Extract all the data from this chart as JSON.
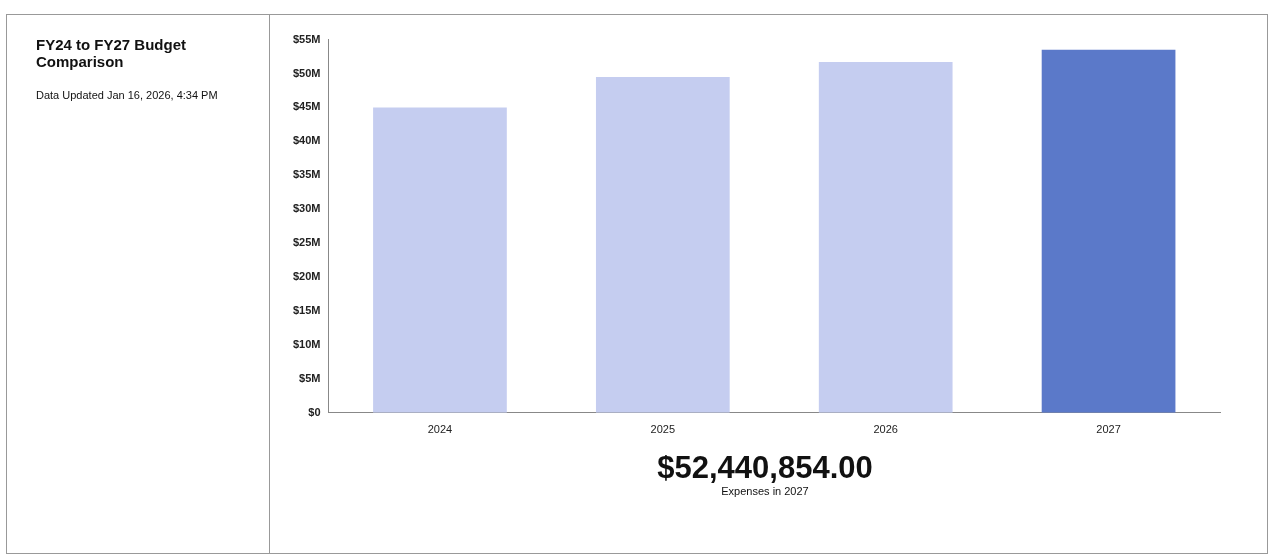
{
  "chart_data": {
    "type": "bar",
    "title": "FY24 to FY27 Budget Comparison",
    "subtitle": "Data Updated Jan 16, 2026, 4:34 PM",
    "categories": [
      "2024",
      "2025",
      "2026",
      "2027"
    ],
    "values": [
      45,
      49.5,
      51.7,
      53.5
    ],
    "colors": [
      "#c5cdf0",
      "#c5cdf0",
      "#c5cdf0",
      "#5b79c9"
    ],
    "ylim": [
      0,
      55
    ],
    "yticks": [
      {
        "value": 0,
        "label": "$0"
      },
      {
        "value": 5,
        "label": "$5M"
      },
      {
        "value": 10,
        "label": "$10M"
      },
      {
        "value": 15,
        "label": "$15M"
      },
      {
        "value": 20,
        "label": "$20M"
      },
      {
        "value": 25,
        "label": "$25M"
      },
      {
        "value": 30,
        "label": "$30M"
      },
      {
        "value": 35,
        "label": "$35M"
      },
      {
        "value": 40,
        "label": "$40M"
      },
      {
        "value": 45,
        "label": "$45M"
      },
      {
        "value": 50,
        "label": "$50M"
      },
      {
        "value": 55,
        "label": "$55M"
      }
    ],
    "grid": false,
    "legend": false,
    "annotations": [
      "$52,440,854.00",
      "Expenses in 2027"
    ]
  }
}
